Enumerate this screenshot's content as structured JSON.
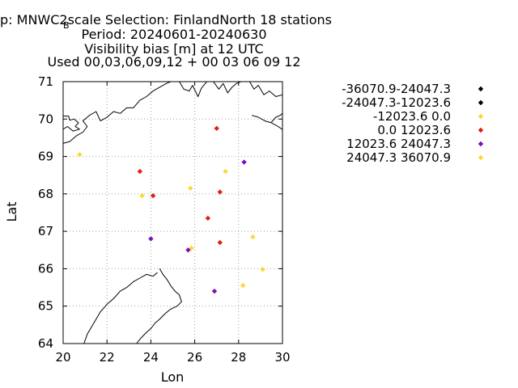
{
  "title_lines": [
    "p: MNWC2scale   Selection: FinlandNorth      18 stations",
    "Period: 20240601-20240630",
    "Visibility bias [m] at  12 UTC",
    "Used 00,03,06,09,12 + 00 03 06 09 12"
  ],
  "title_subscript": "B",
  "colors": {
    "black": "#000000",
    "yellow": "#ffd733",
    "red": "#e51e10",
    "purple": "#7a0eb8",
    "grid": "#a0a0a0",
    "coast": "#000000"
  },
  "chart_data": {
    "type": "scatter",
    "xlabel": "Lon",
    "ylabel": "Lat",
    "xlim": [
      20,
      30
    ],
    "ylim": [
      64,
      71
    ],
    "xticks": [
      20,
      22,
      24,
      26,
      28,
      30
    ],
    "yticks": [
      64,
      65,
      66,
      67,
      68,
      69,
      70,
      71
    ],
    "grid": true,
    "legend_position": "right",
    "legend": [
      {
        "label": "-36070.9-24047.3",
        "color": "#000000"
      },
      {
        "label": "-24047.3-12023.6",
        "color": "#000000"
      },
      {
        "label": "-12023.6 0.0",
        "color": "#ffd733"
      },
      {
        "label": "0.0 12023.6",
        "color": "#e51e10"
      },
      {
        "label": "12023.6 24047.3",
        "color": "#7a0eb8"
      },
      {
        "label": "24047.3 36070.9",
        "color": "#ffd733"
      }
    ],
    "points": [
      {
        "lon": 20.75,
        "lat": 69.05,
        "cls": 2
      },
      {
        "lon": 27.0,
        "lat": 69.75,
        "cls": 3
      },
      {
        "lon": 28.25,
        "lat": 68.85,
        "cls": 4
      },
      {
        "lon": 27.4,
        "lat": 68.6,
        "cls": 2
      },
      {
        "lon": 23.5,
        "lat": 68.6,
        "cls": 3
      },
      {
        "lon": 25.8,
        "lat": 68.15,
        "cls": 2
      },
      {
        "lon": 27.15,
        "lat": 68.05,
        "cls": 3
      },
      {
        "lon": 23.6,
        "lat": 67.95,
        "cls": 2
      },
      {
        "lon": 24.1,
        "lat": 67.95,
        "cls": 3
      },
      {
        "lon": 26.6,
        "lat": 67.35,
        "cls": 3
      },
      {
        "lon": 28.65,
        "lat": 66.85,
        "cls": 2
      },
      {
        "lon": 24.0,
        "lat": 66.8,
        "cls": 4
      },
      {
        "lon": 27.15,
        "lat": 66.7,
        "cls": 3
      },
      {
        "lon": 25.85,
        "lat": 66.55,
        "cls": 2
      },
      {
        "lon": 25.7,
        "lat": 66.5,
        "cls": 4
      },
      {
        "lon": 29.1,
        "lat": 65.98,
        "cls": 2
      },
      {
        "lon": 28.2,
        "lat": 65.55,
        "cls": 2
      },
      {
        "lon": 26.9,
        "lat": 65.4,
        "cls": 4
      }
    ],
    "coastlines": [
      [
        [
          20.0,
          69.35
        ],
        [
          20.3,
          69.4
        ],
        [
          20.6,
          69.55
        ],
        [
          20.9,
          69.65
        ],
        [
          21.1,
          69.8
        ],
        [
          20.9,
          69.95
        ],
        [
          21.2,
          70.1
        ],
        [
          21.5,
          70.2
        ],
        [
          21.7,
          69.95
        ],
        [
          22.0,
          70.05
        ],
        [
          22.3,
          70.2
        ],
        [
          22.6,
          70.15
        ],
        [
          22.9,
          70.3
        ],
        [
          23.2,
          70.3
        ],
        [
          23.5,
          70.5
        ],
        [
          23.8,
          70.6
        ],
        [
          24.1,
          70.75
        ],
        [
          24.4,
          70.85
        ],
        [
          24.7,
          70.95
        ],
        [
          24.9,
          71.0
        ]
      ],
      [
        [
          20.0,
          70.08
        ],
        [
          20.25,
          70.08
        ],
        [
          20.3,
          69.97
        ],
        [
          20.5,
          70.0
        ],
        [
          20.7,
          69.9
        ],
        [
          20.55,
          69.8
        ],
        [
          20.75,
          69.73
        ],
        [
          20.45,
          69.68
        ],
        [
          20.2,
          69.8
        ],
        [
          20.0,
          69.73
        ]
      ],
      [
        [
          25.3,
          71.0
        ],
        [
          25.5,
          70.8
        ],
        [
          25.75,
          70.75
        ],
        [
          25.9,
          70.9
        ],
        [
          26.15,
          70.6
        ],
        [
          26.3,
          70.82
        ],
        [
          26.55,
          71.0
        ]
      ],
      [
        [
          26.85,
          71.0
        ],
        [
          27.1,
          70.8
        ],
        [
          27.3,
          70.95
        ],
        [
          27.5,
          70.7
        ],
        [
          27.7,
          70.85
        ],
        [
          27.9,
          70.95
        ],
        [
          28.1,
          71.0
        ]
      ],
      [
        [
          28.5,
          71.0
        ],
        [
          28.7,
          70.8
        ],
        [
          28.9,
          70.9
        ],
        [
          29.15,
          70.65
        ],
        [
          29.4,
          70.75
        ],
        [
          29.7,
          70.6
        ],
        [
          30.0,
          70.65
        ]
      ],
      [
        [
          28.6,
          70.1
        ],
        [
          28.9,
          70.05
        ],
        [
          29.2,
          69.95
        ],
        [
          29.5,
          69.9
        ],
        [
          29.8,
          69.8
        ],
        [
          30.0,
          69.72
        ]
      ],
      [
        [
          29.5,
          69.92
        ],
        [
          29.7,
          70.05
        ],
        [
          29.9,
          70.1
        ],
        [
          30.0,
          70.15
        ]
      ],
      [
        [
          24.4,
          66.0
        ],
        [
          24.55,
          65.85
        ],
        [
          24.75,
          65.7
        ],
        [
          24.9,
          65.55
        ],
        [
          25.1,
          65.4
        ],
        [
          25.3,
          65.3
        ],
        [
          25.4,
          65.12
        ],
        [
          25.2,
          65.0
        ],
        [
          24.9,
          64.92
        ],
        [
          24.65,
          64.8
        ],
        [
          24.4,
          64.65
        ],
        [
          24.2,
          64.55
        ],
        [
          24.0,
          64.4
        ],
        [
          23.8,
          64.3
        ],
        [
          23.55,
          64.15
        ],
        [
          23.35,
          64.0
        ]
      ],
      [
        [
          24.3,
          65.9
        ],
        [
          24.1,
          65.8
        ],
        [
          23.8,
          65.85
        ],
        [
          23.5,
          65.75
        ],
        [
          23.2,
          65.65
        ],
        [
          22.9,
          65.5
        ],
        [
          22.6,
          65.4
        ],
        [
          22.3,
          65.2
        ],
        [
          22.0,
          65.05
        ],
        [
          21.7,
          64.85
        ],
        [
          21.5,
          64.65
        ],
        [
          21.3,
          64.45
        ],
        [
          21.1,
          64.25
        ],
        [
          20.95,
          64.0
        ]
      ]
    ]
  }
}
